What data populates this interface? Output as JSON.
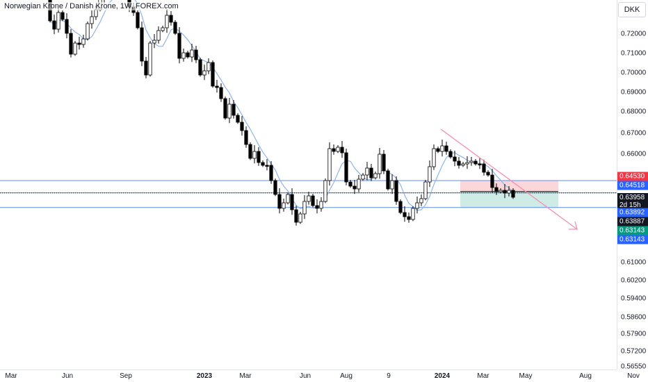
{
  "header": {
    "title": "Norwegian Krone / Danish Krone, 1W, FOREX.com"
  },
  "axis": {
    "currency": "DKK"
  },
  "y_ticks": [
    "0.72000",
    "0.71000",
    "0.70000",
    "0.69000",
    "0.68000",
    "0.67000",
    "0.66000",
    "0.61000",
    "0.60200",
    "0.59400",
    "0.58600",
    "0.57900",
    "0.57200",
    "0.56550"
  ],
  "x_ticks": [
    {
      "label": "Mar",
      "bold": false
    },
    {
      "label": "Jun",
      "bold": false
    },
    {
      "label": "Sep",
      "bold": false
    },
    {
      "label": "2023",
      "bold": true
    },
    {
      "label": "Mar",
      "bold": false
    },
    {
      "label": "Jun",
      "bold": false
    },
    {
      "label": "Aug",
      "bold": false
    },
    {
      "label": "9",
      "bold": false
    },
    {
      "label": "2024",
      "bold": true
    },
    {
      "label": "Mar",
      "bold": false
    },
    {
      "label": "May",
      "bold": false
    },
    {
      "label": "Aug",
      "bold": false
    },
    {
      "label": "Nov",
      "bold": false
    }
  ],
  "price_labels": [
    {
      "text": "0.64530",
      "sub": "",
      "color": "#f23645"
    },
    {
      "text": "0.64518",
      "sub": "",
      "color": "#2962ff"
    },
    {
      "text": "0.63958",
      "sub": "2d 15h",
      "color": "#131722"
    },
    {
      "text": "0.63892",
      "sub": "",
      "color": "#2962ff"
    },
    {
      "text": "0.63887",
      "sub": "",
      "color": "#131722"
    },
    {
      "text": "0.63143",
      "sub": "",
      "color": "#089981"
    },
    {
      "text": "0.63143",
      "sub": "",
      "color": "#2962ff"
    }
  ],
  "colors": {
    "bull_body": "#ffffff",
    "bear_body": "#000000",
    "wick": "#000000",
    "ma": "#90b4e8",
    "hline": "#5b8def",
    "stop_zone": "rgba(242,54,69,0.2)",
    "target_zone": "rgba(8,153,129,0.2)",
    "trend_arrow": "#f48fb1"
  },
  "chart_data": {
    "type": "candlestick",
    "symbol": "Norwegian Krone / Danish Krone",
    "interval": "1W",
    "source": "FOREX.com",
    "y_axis_labels": [
      0.72,
      0.71,
      0.7,
      0.69,
      0.68,
      0.67,
      0.66,
      0.61,
      0.602,
      0.594,
      0.586,
      0.579,
      0.572,
      0.5655
    ],
    "horizontal_levels": [
      0.64518,
      0.63892,
      0.63143
    ],
    "position": {
      "stop": 0.6453,
      "entry": 0.63958,
      "target": 0.63143
    },
    "last_close": 0.63887,
    "time_to_close": "2d 15h",
    "trend_arrow_drawn": true,
    "moving_average_drawn": true
  }
}
